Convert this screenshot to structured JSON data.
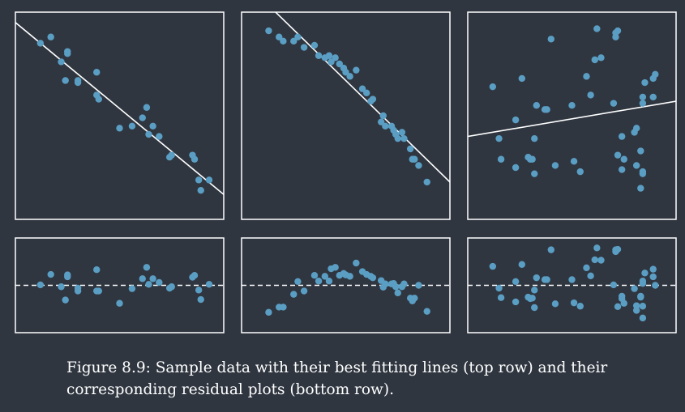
{
  "chart_data": [
    {
      "type": "scatter",
      "row": "top",
      "column": 1,
      "xlim": [
        0,
        100
      ],
      "ylim": [
        0,
        100
      ],
      "points": [
        [
          12,
          85
        ],
        [
          17,
          88
        ],
        [
          22,
          76
        ],
        [
          25,
          81
        ],
        [
          25,
          80
        ],
        [
          24,
          67
        ],
        [
          30,
          66
        ],
        [
          30,
          67
        ],
        [
          39,
          71
        ],
        [
          39,
          60
        ],
        [
          40,
          58
        ],
        [
          50,
          44
        ],
        [
          56,
          45
        ],
        [
          61,
          49
        ],
        [
          63,
          54
        ],
        [
          64,
          41
        ],
        [
          66,
          45
        ],
        [
          69,
          40
        ],
        [
          74,
          30
        ],
        [
          75,
          31
        ],
        [
          85,
          31
        ],
        [
          86,
          29
        ],
        [
          88,
          19
        ],
        [
          89,
          14
        ],
        [
          93,
          19
        ]
      ],
      "fit_line": [
        [
          0,
          95
        ],
        [
          100,
          12
        ]
      ]
    },
    {
      "type": "scatter",
      "row": "top",
      "column": 2,
      "xlim": [
        0,
        100
      ],
      "ylim": [
        0,
        100
      ],
      "points": [
        [
          13,
          91
        ],
        [
          18,
          88
        ],
        [
          20,
          86
        ],
        [
          25,
          86
        ],
        [
          27,
          88
        ],
        [
          30,
          83
        ],
        [
          35,
          84
        ],
        [
          37,
          79
        ],
        [
          40,
          78
        ],
        [
          42,
          79
        ],
        [
          43,
          76
        ],
        [
          45,
          78
        ],
        [
          47,
          75
        ],
        [
          49,
          73
        ],
        [
          50,
          71
        ],
        [
          52,
          69
        ],
        [
          55,
          72
        ],
        [
          58,
          63
        ],
        [
          60,
          61
        ],
        [
          62,
          57
        ],
        [
          63,
          58
        ],
        [
          68,
          50
        ],
        [
          67,
          47
        ],
        [
          69,
          45
        ],
        [
          72,
          45
        ],
        [
          73,
          43
        ],
        [
          74,
          41
        ],
        [
          75,
          39
        ],
        [
          77,
          42
        ],
        [
          78,
          39
        ],
        [
          81,
          34
        ],
        [
          82,
          29
        ],
        [
          83,
          29
        ],
        [
          85,
          26
        ],
        [
          89,
          18
        ]
      ],
      "fit_line": [
        [
          0,
          116
        ],
        [
          100,
          18
        ]
      ]
    },
    {
      "type": "scatter",
      "row": "top",
      "column": 3,
      "xlim": [
        0,
        100
      ],
      "ylim": [
        0,
        100
      ],
      "points": [
        [
          12,
          64
        ],
        [
          15,
          39
        ],
        [
          16,
          29
        ],
        [
          23,
          48
        ],
        [
          23,
          25
        ],
        [
          26,
          68
        ],
        [
          29,
          30
        ],
        [
          30,
          29
        ],
        [
          31,
          29
        ],
        [
          32,
          39
        ],
        [
          32,
          22
        ],
        [
          33,
          55
        ],
        [
          37,
          53
        ],
        [
          38,
          53
        ],
        [
          40,
          87
        ],
        [
          42,
          26
        ],
        [
          50,
          55
        ],
        [
          51,
          28
        ],
        [
          54,
          23
        ],
        [
          57,
          69
        ],
        [
          59,
          60
        ],
        [
          61,
          77
        ],
        [
          62,
          92
        ],
        [
          64,
          78
        ],
        [
          70,
          56
        ],
        [
          71,
          90
        ],
        [
          71,
          88
        ],
        [
          72,
          91
        ],
        [
          72,
          31
        ],
        [
          74,
          40
        ],
        [
          74,
          24
        ],
        [
          75,
          29
        ],
        [
          80,
          42
        ],
        [
          81,
          26
        ],
        [
          83,
          33
        ],
        [
          84,
          23
        ],
        [
          84,
          22
        ],
        [
          84,
          56
        ],
        [
          84,
          59
        ],
        [
          85,
          66
        ],
        [
          89,
          68
        ],
        [
          89,
          59
        ],
        [
          90,
          70
        ],
        [
          83,
          15
        ],
        [
          81,
          44
        ]
      ],
      "fit_line": [
        [
          0,
          40
        ],
        [
          100,
          57
        ]
      ]
    },
    {
      "type": "residual",
      "row": "bottom",
      "column": 1,
      "xlim": [
        0,
        100
      ],
      "ylim": [
        -1,
        1
      ],
      "points": [
        [
          12,
          0.01
        ],
        [
          17,
          0.23
        ],
        [
          22,
          -0.03
        ],
        [
          25,
          0.18
        ],
        [
          25,
          0.22
        ],
        [
          24,
          -0.31
        ],
        [
          30,
          -0.12
        ],
        [
          30,
          -0.06
        ],
        [
          39,
          0.33
        ],
        [
          39,
          -0.12
        ],
        [
          40,
          -0.12
        ],
        [
          50,
          -0.38
        ],
        [
          56,
          -0.07
        ],
        [
          61,
          0.14
        ],
        [
          63,
          0.38
        ],
        [
          64,
          0.02
        ],
        [
          66,
          0.14
        ],
        [
          69,
          0.06
        ],
        [
          74,
          -0.06
        ],
        [
          75,
          -0.03
        ],
        [
          85,
          0.17
        ],
        [
          86,
          0.21
        ],
        [
          88,
          -0.1
        ],
        [
          89,
          -0.3
        ],
        [
          93,
          0.02
        ]
      ],
      "zero_line": 0
    },
    {
      "type": "residual",
      "row": "bottom",
      "column": 2,
      "xlim": [
        0,
        100
      ],
      "ylim": [
        -1,
        1
      ],
      "points": [
        [
          13,
          -0.57
        ],
        [
          18,
          -0.46
        ],
        [
          20,
          -0.46
        ],
        [
          25,
          -0.19
        ],
        [
          27,
          0.08
        ],
        [
          30,
          -0.12
        ],
        [
          35,
          0.21
        ],
        [
          37,
          0.09
        ],
        [
          40,
          0.19
        ],
        [
          42,
          0.09
        ],
        [
          43,
          0.35
        ],
        [
          45,
          0.38
        ],
        [
          47,
          0.21
        ],
        [
          49,
          0.25
        ],
        [
          50,
          0.22
        ],
        [
          52,
          0.19
        ],
        [
          55,
          0.47
        ],
        [
          58,
          0.29
        ],
        [
          60,
          0.23
        ],
        [
          62,
          0.19
        ],
        [
          63,
          0.16
        ],
        [
          68,
          -0.04
        ],
        [
          67,
          0.1
        ],
        [
          69,
          0.03
        ],
        [
          72,
          0.03
        ],
        [
          73,
          0.04
        ],
        [
          74,
          -0.03
        ],
        [
          75,
          -0.16
        ],
        [
          77,
          -0.03
        ],
        [
          78,
          0.03
        ],
        [
          81,
          -0.27
        ],
        [
          82,
          -0.33
        ],
        [
          83,
          -0.27
        ],
        [
          85,
          0.0
        ],
        [
          89,
          -0.55
        ]
      ],
      "zero_line": 0
    },
    {
      "type": "residual",
      "row": "bottom",
      "column": 3,
      "xlim": [
        0,
        100
      ],
      "ylim": [
        -1,
        1
      ],
      "points": [
        [
          12,
          0.4
        ],
        [
          15,
          -0.06
        ],
        [
          16,
          -0.26
        ],
        [
          23,
          0.08
        ],
        [
          23,
          -0.35
        ],
        [
          26,
          0.44
        ],
        [
          29,
          -0.25
        ],
        [
          30,
          -0.28
        ],
        [
          31,
          -0.27
        ],
        [
          32,
          -0.1
        ],
        [
          32,
          -0.47
        ],
        [
          33,
          0.16
        ],
        [
          37,
          0.12
        ],
        [
          38,
          0.12
        ],
        [
          40,
          0.75
        ],
        [
          42,
          -0.39
        ],
        [
          50,
          0.12
        ],
        [
          51,
          -0.37
        ],
        [
          54,
          -0.44
        ],
        [
          57,
          0.37
        ],
        [
          59,
          0.2
        ],
        [
          61,
          0.54
        ],
        [
          62,
          0.79
        ],
        [
          64,
          0.53
        ],
        [
          70,
          0.01
        ],
        [
          71,
          0.75
        ],
        [
          71,
          0.71
        ],
        [
          72,
          0.76
        ],
        [
          72,
          -0.45
        ],
        [
          74,
          -0.23
        ],
        [
          74,
          -0.28
        ],
        [
          75,
          -0.38
        ],
        [
          80,
          -0.07
        ],
        [
          81,
          -0.43
        ],
        [
          83,
          -0.23
        ],
        [
          84,
          -0.69
        ],
        [
          84,
          -0.44
        ],
        [
          84,
          0.04
        ],
        [
          84,
          0.09
        ],
        [
          85,
          0.26
        ],
        [
          89,
          0.34
        ],
        [
          89,
          0.18
        ],
        [
          90,
          0.0
        ],
        [
          81,
          -0.53
        ],
        [
          83,
          -0.25
        ]
      ],
      "zero_line": 0
    }
  ],
  "caption": "Figure 8.9: Sample data with their best fitting lines (top row) and their corresponding residual plots (bottom row).",
  "colors": {
    "background": "#2f3640",
    "frame": "#ffffff",
    "point": "#5b9ec4",
    "line": "#ffffff"
  }
}
